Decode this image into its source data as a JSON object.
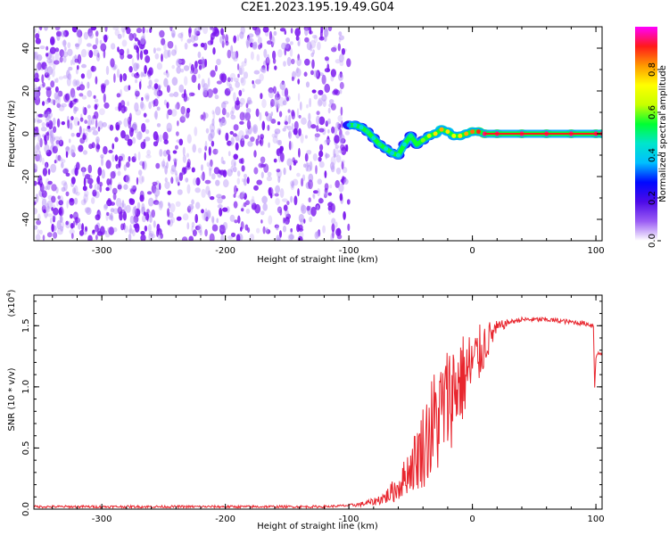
{
  "title": "C2E1.2023.195.19.49.G04",
  "colors": {
    "snr_line": "#e8262e",
    "frame": "#000000",
    "spectrogram_noise": "#7a16ee",
    "colorbar": [
      "#ffffff",
      "#9a5cf4",
      "#4d0ae8",
      "#0008ff",
      "#00bfff",
      "#00e5cc",
      "#00ff33",
      "#c8ff00",
      "#ffff00",
      "#ff9900",
      "#ff1a1a",
      "#ff00ff"
    ]
  },
  "chart_data": [
    {
      "type": "heatmap",
      "name": "spectrogram",
      "xlabel": "Height of straight line (km)",
      "ylabel": "Frequency (Hz)",
      "xlim": [
        -355,
        105
      ],
      "ylim": [
        -50,
        50
      ],
      "xticks": [
        -300,
        -200,
        -100,
        0,
        100
      ],
      "xtick_labels": [
        "-300",
        "-200",
        "-100",
        "0",
        "100"
      ],
      "yticks": [
        -40,
        -20,
        0,
        20,
        40
      ],
      "ytick_labels": [
        "-40",
        "-20",
        "0",
        "20",
        "40"
      ],
      "noise_region_x": [
        -355,
        -100
      ],
      "ridge": {
        "x": [
          -100,
          -95,
          -90,
          -85,
          -80,
          -75,
          -70,
          -65,
          -60,
          -55,
          -50,
          -45,
          -40,
          -35,
          -30,
          -25,
          -20,
          -15,
          -10,
          -5,
          0,
          5,
          10,
          20,
          40,
          60,
          80,
          100,
          105
        ],
        "freq": [
          4,
          4,
          3,
          1,
          -2,
          -5,
          -7,
          -9,
          -10,
          -5,
          -1,
          -5,
          -3,
          -1,
          0,
          2,
          1,
          -1,
          -1,
          0,
          1,
          1,
          0,
          0,
          0,
          0,
          0,
          0,
          0
        ],
        "amplitude": [
          0.35,
          0.4,
          0.45,
          0.5,
          0.45,
          0.5,
          0.45,
          0.4,
          0.45,
          0.45,
          0.5,
          0.55,
          0.6,
          0.65,
          0.75,
          0.8,
          0.75,
          0.7,
          0.75,
          0.8,
          0.85,
          0.9,
          0.95,
          0.95,
          0.95,
          0.95,
          0.95,
          0.95,
          0.95
        ]
      },
      "colorbar": {
        "label": "Normalized spectral amplitude",
        "range": [
          0,
          1
        ],
        "ticks": [
          0.0,
          0.2,
          0.4,
          0.6,
          0.8
        ],
        "tick_labels": [
          "0.0",
          "0.2",
          "0.4",
          "0.6",
          "0.8"
        ]
      }
    },
    {
      "type": "line",
      "name": "snr",
      "xlabel": "Height of straight line (km)",
      "ylabel": "SNR (10 * v/v)",
      "y_multiplier_label": "(x10",
      "y_multiplier_exp": "4",
      "xlim": [
        -355,
        105
      ],
      "ylim": [
        0,
        1.75
      ],
      "xticks": [
        -300,
        -200,
        -100,
        0,
        100
      ],
      "xtick_labels": [
        "-300",
        "-200",
        "-100",
        "0",
        "100"
      ],
      "yticks": [
        0.0,
        0.5,
        1.0,
        1.5
      ],
      "ytick_labels": [
        "0.0",
        "0.5",
        "1.0",
        "1.5"
      ],
      "series": [
        {
          "x": [
            -355,
            -300,
            -250,
            -200,
            -150,
            -120,
            -100,
            -90,
            -80,
            -70,
            -60,
            -55,
            -50,
            -45,
            -40,
            -35,
            -30,
            -25,
            -20,
            -15,
            -10,
            -5,
            0,
            5,
            10,
            15,
            20,
            30,
            40,
            50,
            60,
            70,
            80,
            90,
            95,
            98,
            99,
            100,
            101,
            105
          ],
          "y": [
            0.02,
            0.02,
            0.02,
            0.02,
            0.02,
            0.02,
            0.03,
            0.04,
            0.06,
            0.1,
            0.18,
            0.26,
            0.34,
            0.42,
            0.52,
            0.62,
            0.7,
            0.8,
            0.9,
            0.98,
            1.05,
            1.1,
            1.18,
            1.25,
            1.35,
            1.42,
            1.48,
            1.53,
            1.55,
            1.55,
            1.55,
            1.54,
            1.53,
            1.52,
            1.51,
            1.5,
            1.0,
            1.25,
            1.27,
            1.27
          ],
          "spread": [
            0.01,
            0.01,
            0.01,
            0.01,
            0.01,
            0.01,
            0.01,
            0.02,
            0.03,
            0.06,
            0.12,
            0.15,
            0.2,
            0.28,
            0.35,
            0.42,
            0.5,
            0.45,
            0.45,
            0.45,
            0.4,
            0.35,
            0.3,
            0.25,
            0.2,
            0.12,
            0.06,
            0.02,
            0.02,
            0.02,
            0.02,
            0.02,
            0.02,
            0.02,
            0.02,
            0.02,
            0.02,
            0.02,
            0.02,
            0.02
          ]
        }
      ]
    }
  ]
}
